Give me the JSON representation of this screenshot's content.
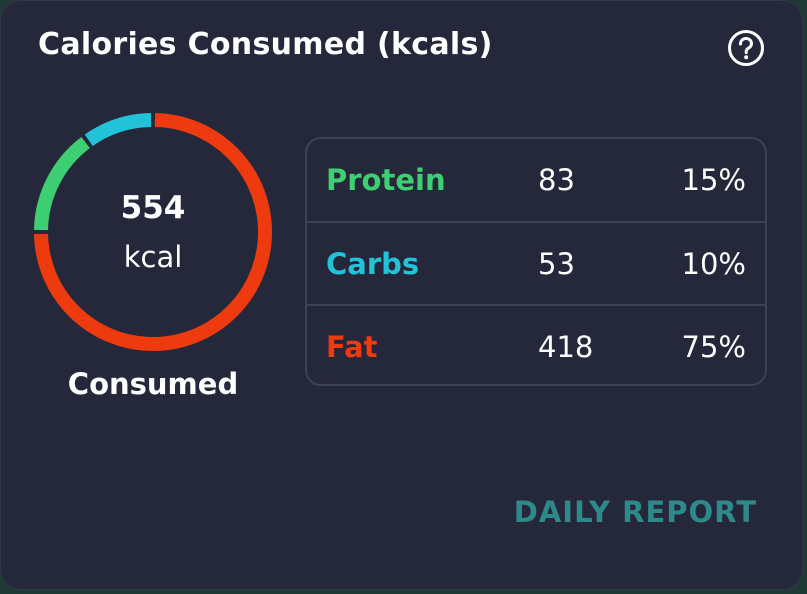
{
  "card": {
    "title": "Calories Consumed (kcals)",
    "help_icon": "question-circle-icon"
  },
  "summary": {
    "value": "554",
    "unit": "kcal",
    "label": "Consumed"
  },
  "ring": {
    "segments": [
      {
        "name": "Protein",
        "percent": 15,
        "color": "#3ecf72"
      },
      {
        "name": "Carbs",
        "percent": 10,
        "color": "#22c3d9"
      },
      {
        "name": "Fat",
        "percent": 75,
        "color": "#ee3a0f"
      }
    ]
  },
  "macros": [
    {
      "name": "Protein",
      "grams": "83",
      "percent": "15%",
      "color": "#3ecf72"
    },
    {
      "name": "Carbs",
      "grams": "53",
      "percent": "10%",
      "color": "#22c3d9"
    },
    {
      "name": "Fat",
      "grams": "418",
      "percent": "75%",
      "color": "#ee3a0f"
    }
  ],
  "footer": {
    "report_link": "DAILY REPORT"
  },
  "colors": {
    "card_bg": "#25283a",
    "link": "#2e8a8a"
  }
}
